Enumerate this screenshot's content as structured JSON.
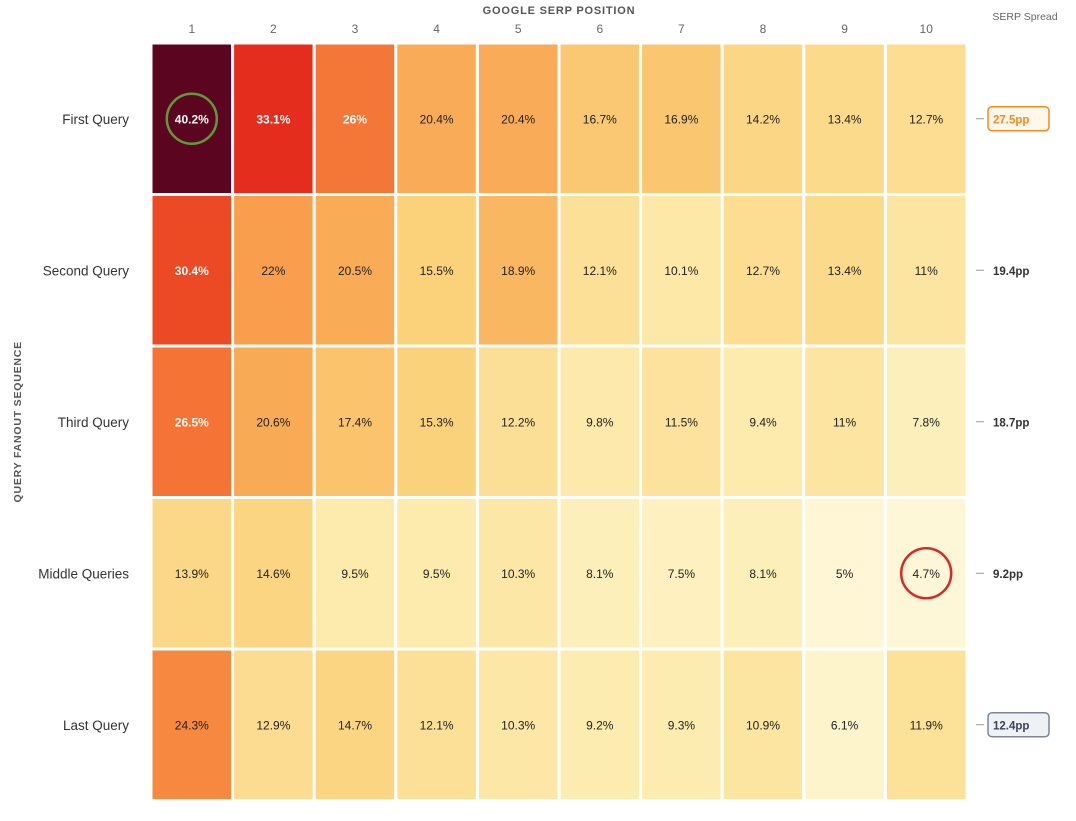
{
  "chart_data": {
    "type": "heatmap",
    "title": "GOOGLE SERP POSITION",
    "xlabel": "GOOGLE SERP POSITION",
    "ylabel": "QUERY FANOUT SEQUENCE",
    "spread_label": "SERP Spread",
    "x": [
      "1",
      "2",
      "3",
      "4",
      "5",
      "6",
      "7",
      "8",
      "9",
      "10"
    ],
    "y": [
      "First Query",
      "Second Query",
      "Third Query",
      "Middle Queries",
      "Last Query"
    ],
    "values": [
      [
        40.2,
        33.1,
        26,
        20.4,
        20.4,
        16.7,
        16.9,
        14.2,
        13.4,
        12.7
      ],
      [
        30.4,
        22,
        20.5,
        15.5,
        18.9,
        12.1,
        10.1,
        12.7,
        13.4,
        11
      ],
      [
        26.5,
        20.6,
        17.4,
        15.3,
        12.2,
        9.8,
        11.5,
        9.4,
        11,
        7.8
      ],
      [
        13.9,
        14.6,
        9.5,
        9.5,
        10.3,
        8.1,
        7.5,
        8.1,
        5,
        4.7
      ],
      [
        24.3,
        12.9,
        14.7,
        12.1,
        10.3,
        9.2,
        9.3,
        10.9,
        6.1,
        11.9
      ]
    ],
    "value_labels": [
      [
        "40.2%",
        "33.1%",
        "26%",
        "20.4%",
        "20.4%",
        "16.7%",
        "16.9%",
        "14.2%",
        "13.4%",
        "12.7%"
      ],
      [
        "30.4%",
        "22%",
        "20.5%",
        "15.5%",
        "18.9%",
        "12.1%",
        "10.1%",
        "12.7%",
        "13.4%",
        "11%"
      ],
      [
        "26.5%",
        "20.6%",
        "17.4%",
        "15.3%",
        "12.2%",
        "9.8%",
        "11.5%",
        "9.4%",
        "11%",
        "7.8%"
      ],
      [
        "13.9%",
        "14.6%",
        "9.5%",
        "9.5%",
        "10.3%",
        "8.1%",
        "7.5%",
        "8.1%",
        "5%",
        "4.7%"
      ],
      [
        "24.3%",
        "12.9%",
        "14.7%",
        "12.1%",
        "10.3%",
        "9.2%",
        "9.3%",
        "10.9%",
        "6.1%",
        "11.9%"
      ]
    ],
    "serp_spread": [
      "27.5pp",
      "19.4pp",
      "18.7pp",
      "9.2pp",
      "12.4pp"
    ],
    "highlighted_spread": [
      {
        "row": 0,
        "style": "orange-box",
        "color": "#f08c1e"
      },
      {
        "row": 4,
        "style": "slate-box",
        "color": "#7c8595"
      }
    ],
    "circled_cells": [
      {
        "row": 0,
        "col": 0,
        "color": "#5e9a3c"
      },
      {
        "row": 3,
        "col": 9,
        "color": "#d42a2a"
      }
    ],
    "color_scale": [
      "#fffbe6",
      "#fdecb0",
      "#fbd27b",
      "#f8a24e",
      "#f4662d",
      "#e2231a",
      "#5c0520"
    ],
    "legend": "none",
    "grid": false
  }
}
